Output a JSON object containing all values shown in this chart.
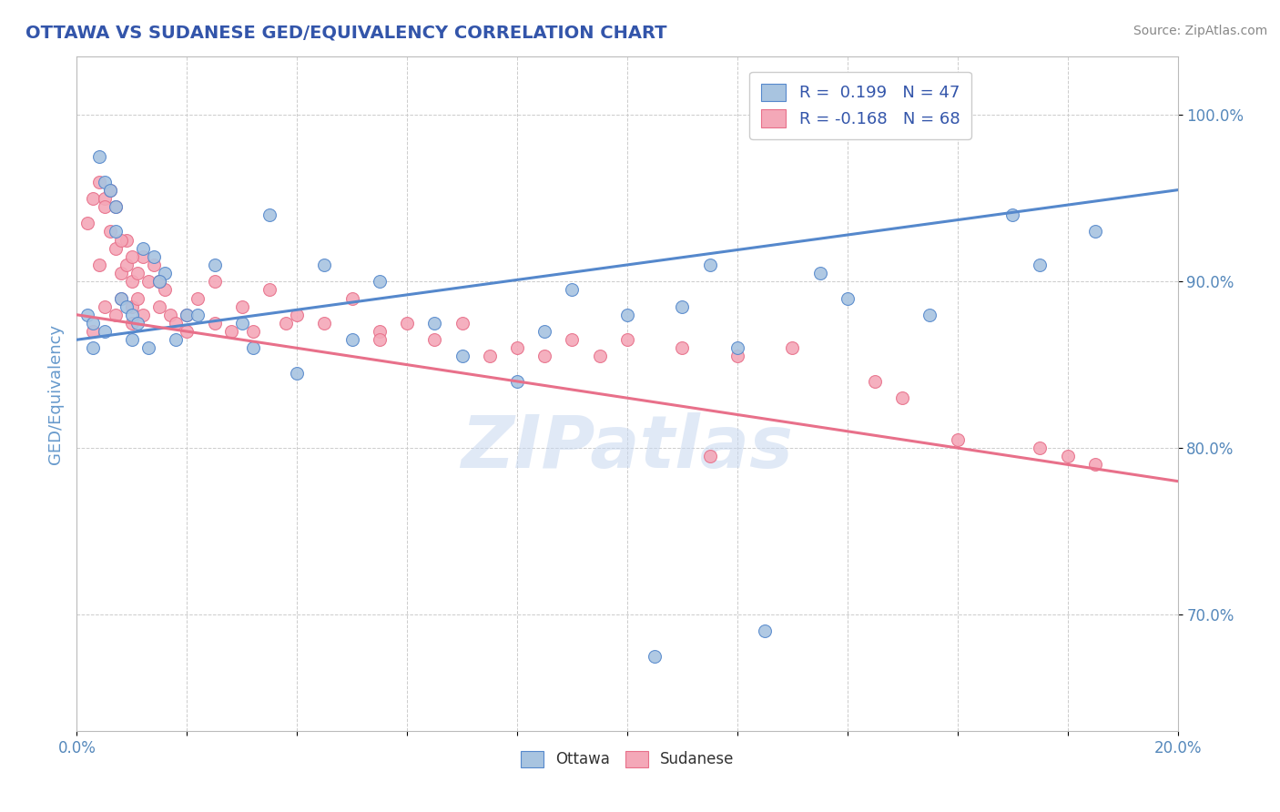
{
  "title": "OTTAWA VS SUDANESE GED/EQUIVALENCY CORRELATION CHART",
  "source": "Source: ZipAtlas.com",
  "xlabel": "",
  "ylabel": "GED/Equivalency",
  "xlim": [
    0.0,
    20.0
  ],
  "ylim": [
    63.0,
    103.5
  ],
  "xticks": [
    0.0,
    2.0,
    4.0,
    6.0,
    8.0,
    10.0,
    12.0,
    14.0,
    16.0,
    18.0,
    20.0
  ],
  "yticks": [
    70.0,
    80.0,
    90.0,
    100.0
  ],
  "ytick_labels": [
    "70.0%",
    "80.0%",
    "90.0%",
    "100.0%"
  ],
  "xtick_labels": [
    "0.0%",
    "",
    "",
    "",
    "",
    "",
    "",
    "",
    "",
    "",
    "20.0%"
  ],
  "ottawa_color": "#a8c4e0",
  "sudanese_color": "#f4a8b8",
  "ottawa_line_color": "#5588cc",
  "sudanese_line_color": "#e8708a",
  "R_ottawa": 0.199,
  "N_ottawa": 47,
  "R_sudanese": -0.168,
  "N_sudanese": 68,
  "title_color": "#3355aa",
  "axis_label_color": "#6699cc",
  "tick_color": "#5588bb",
  "legend_R_color": "#3355aa",
  "watermark": "ZIPatlas",
  "watermark_color": "#c8d8f0",
  "ottawa_line_x0": 0.0,
  "ottawa_line_y0": 86.5,
  "ottawa_line_x1": 20.0,
  "ottawa_line_y1": 95.5,
  "sudanese_line_x0": 0.0,
  "sudanese_line_y0": 88.0,
  "sudanese_line_x1": 20.0,
  "sudanese_line_y1": 78.0,
  "ottawa_x": [
    0.2,
    0.3,
    0.4,
    0.5,
    0.6,
    0.7,
    0.8,
    0.9,
    1.0,
    1.1,
    1.2,
    1.4,
    1.6,
    1.8,
    2.0,
    2.5,
    3.0,
    3.5,
    4.5,
    5.5,
    7.0,
    8.0,
    9.0,
    11.5,
    13.5,
    17.5,
    18.5,
    0.3,
    0.5,
    0.7,
    1.0,
    1.3,
    1.5,
    2.2,
    3.2,
    4.0,
    5.0,
    6.5,
    8.5,
    10.0,
    11.0,
    12.0,
    14.0,
    15.5,
    17.0,
    10.5,
    12.5
  ],
  "ottawa_y": [
    88.0,
    87.5,
    97.5,
    96.0,
    95.5,
    94.5,
    89.0,
    88.5,
    88.0,
    87.5,
    92.0,
    91.5,
    90.5,
    86.5,
    88.0,
    91.0,
    87.5,
    94.0,
    91.0,
    90.0,
    85.5,
    84.0,
    89.5,
    91.0,
    90.5,
    91.0,
    93.0,
    86.0,
    87.0,
    93.0,
    86.5,
    86.0,
    90.0,
    88.0,
    86.0,
    84.5,
    86.5,
    87.5,
    87.0,
    88.0,
    88.5,
    86.0,
    89.0,
    88.0,
    94.0,
    67.5,
    69.0
  ],
  "sudanese_x": [
    0.2,
    0.3,
    0.3,
    0.4,
    0.4,
    0.5,
    0.5,
    0.6,
    0.6,
    0.7,
    0.7,
    0.7,
    0.8,
    0.8,
    0.9,
    0.9,
    1.0,
    1.0,
    1.0,
    1.1,
    1.1,
    1.2,
    1.2,
    1.3,
    1.4,
    1.5,
    1.5,
    1.6,
    1.7,
    1.8,
    2.0,
    2.0,
    2.2,
    2.5,
    2.8,
    3.0,
    3.2,
    3.5,
    4.0,
    4.5,
    5.0,
    5.5,
    6.0,
    6.5,
    7.0,
    7.5,
    8.0,
    8.5,
    9.0,
    9.5,
    10.0,
    11.0,
    12.0,
    13.0,
    14.5,
    15.0,
    16.0,
    17.5,
    18.0,
    18.5,
    0.5,
    0.8,
    1.0,
    1.5,
    2.5,
    3.8,
    5.5,
    11.5
  ],
  "sudanese_y": [
    93.5,
    95.0,
    87.0,
    96.0,
    91.0,
    95.0,
    88.5,
    95.5,
    93.0,
    94.5,
    92.0,
    88.0,
    90.5,
    89.0,
    92.5,
    91.0,
    90.0,
    88.5,
    87.5,
    90.5,
    89.0,
    88.0,
    91.5,
    90.0,
    91.0,
    90.0,
    88.5,
    89.5,
    88.0,
    87.5,
    88.0,
    87.0,
    89.0,
    87.5,
    87.0,
    88.5,
    87.0,
    89.5,
    88.0,
    87.5,
    89.0,
    87.0,
    87.5,
    86.5,
    87.5,
    85.5,
    86.0,
    85.5,
    86.5,
    85.5,
    86.5,
    86.0,
    85.5,
    86.0,
    84.0,
    83.0,
    80.5,
    80.0,
    79.5,
    79.0,
    94.5,
    92.5,
    91.5,
    90.0,
    90.0,
    87.5,
    86.5,
    79.5
  ]
}
